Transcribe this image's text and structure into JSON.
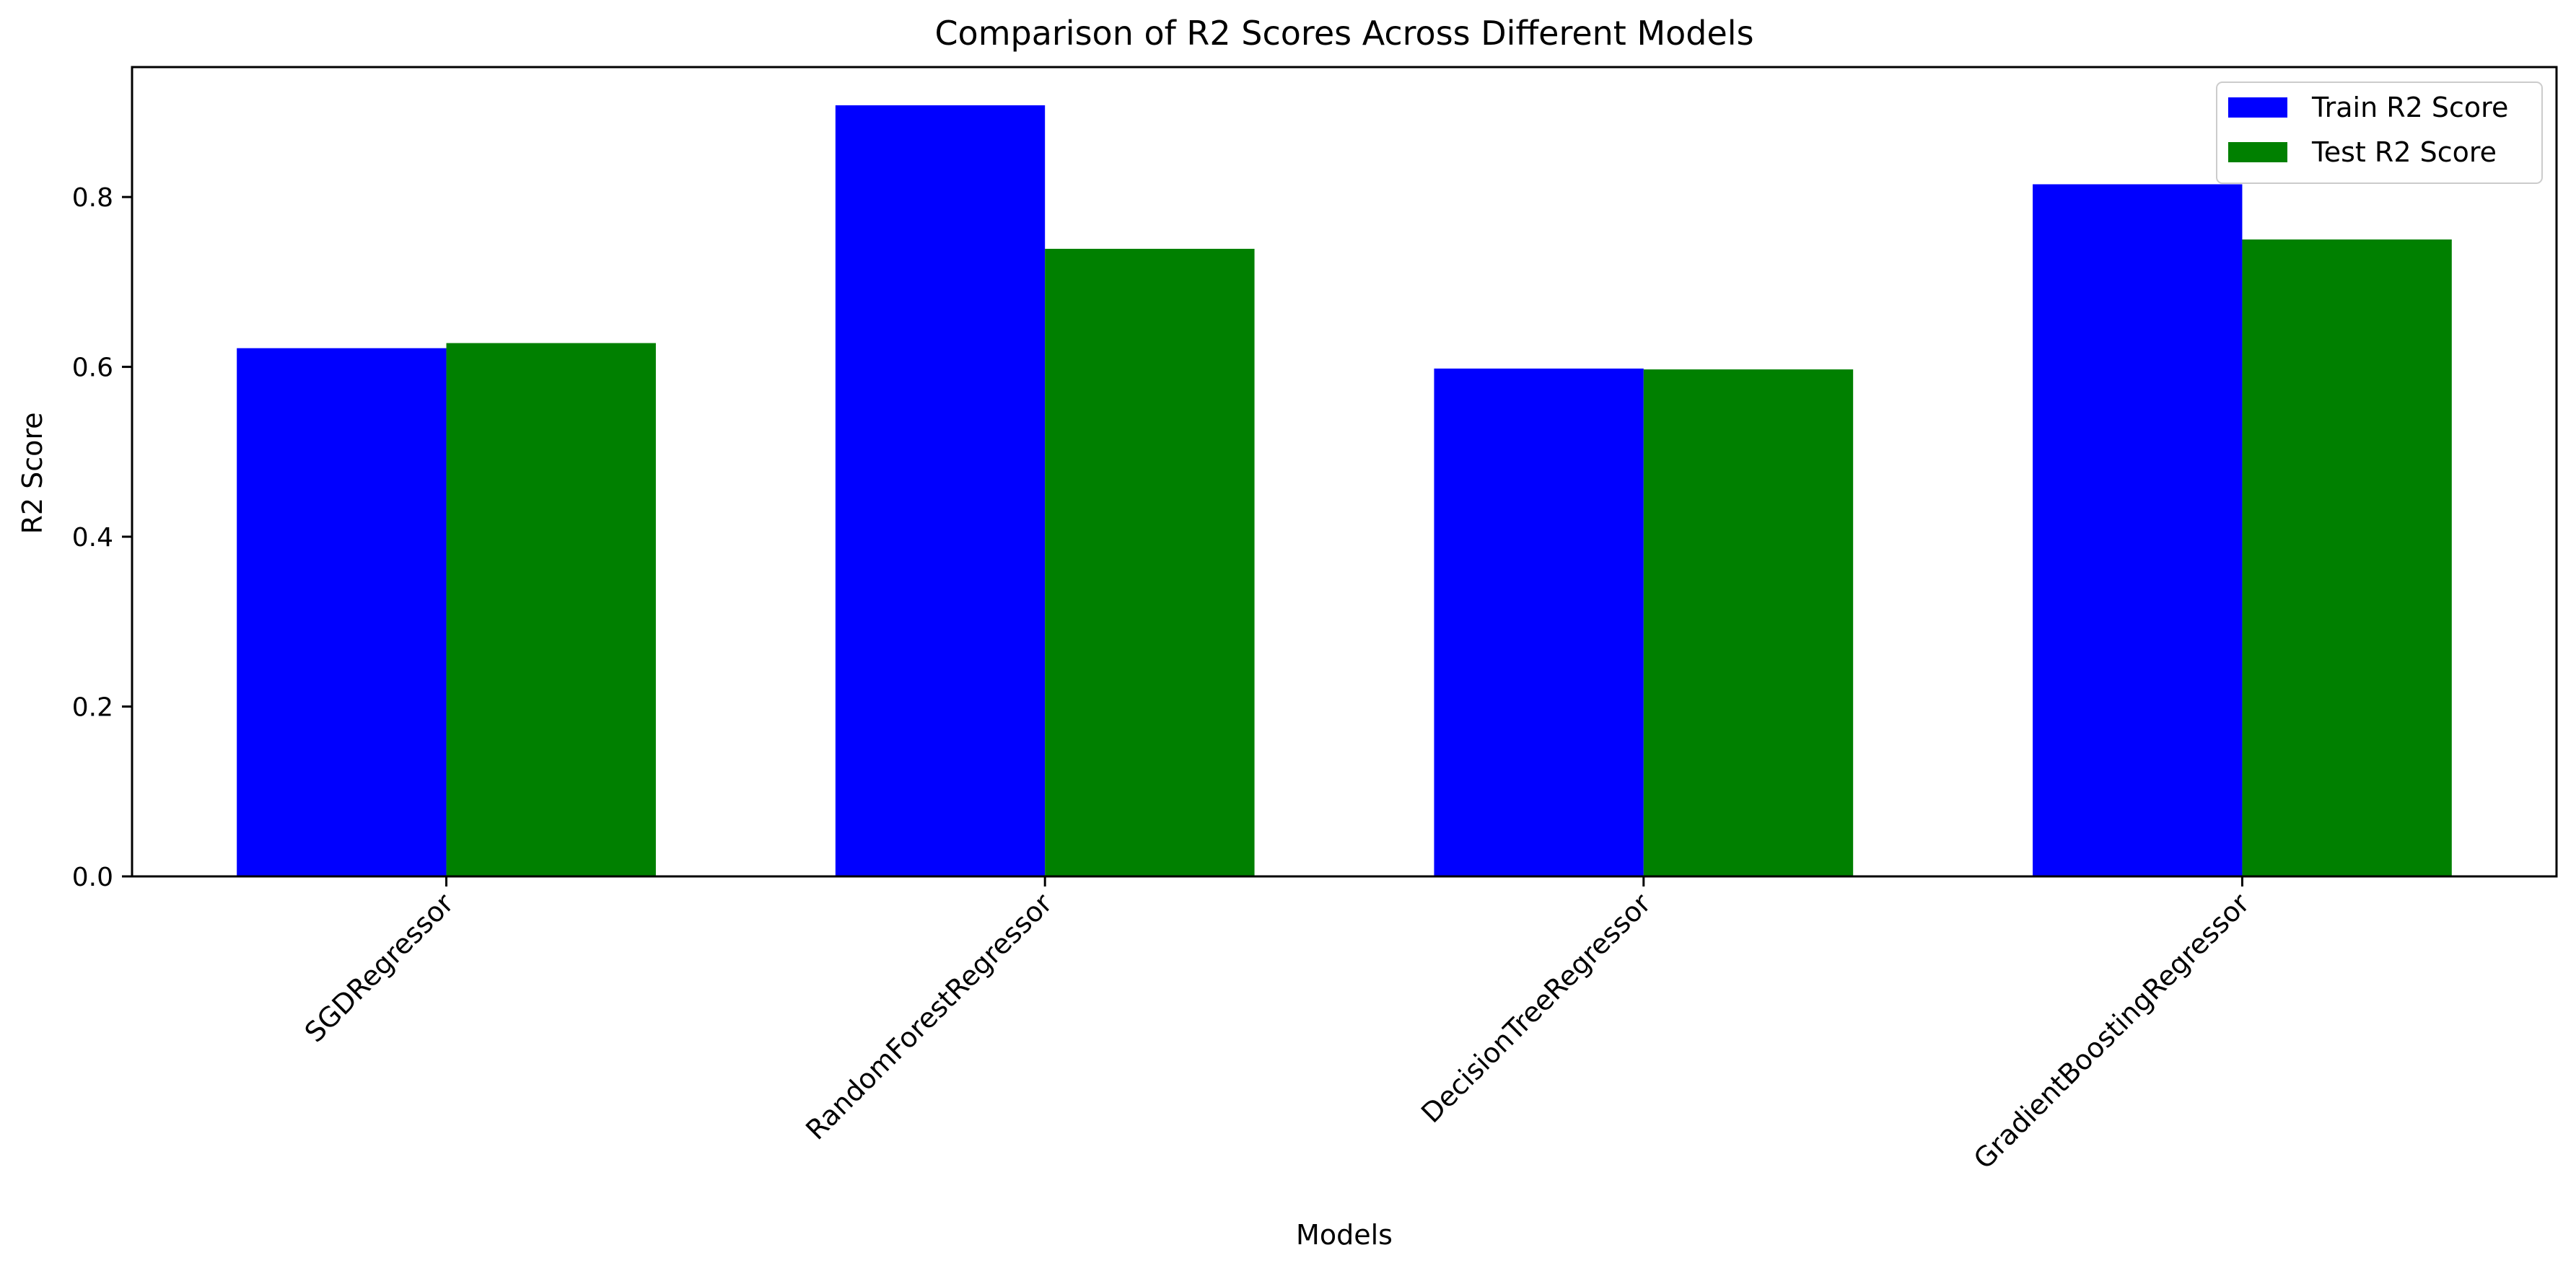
{
  "chart_data": {
    "type": "bar",
    "title": "Comparison of R2 Scores Across Different Models",
    "xlabel": "Models",
    "ylabel": "R2 Score",
    "categories": [
      "SGDRegressor",
      "RandomForestRegressor",
      "DecisionTreeRegressor",
      "GradientBoostingRegressor"
    ],
    "series": [
      {
        "name": "Train R2 Score",
        "color": "#0000ff",
        "values": [
          0.622,
          0.908,
          0.598,
          0.815
        ]
      },
      {
        "name": "Test R2 Score",
        "color": "#008000",
        "values": [
          0.628,
          0.739,
          0.597,
          0.75
        ]
      }
    ],
    "yticks": [
      0.0,
      0.2,
      0.4,
      0.6,
      0.8
    ],
    "ytick_labels": [
      "0.0",
      "0.2",
      "0.4",
      "0.6",
      "0.8"
    ],
    "ylim": [
      0,
      0.953
    ],
    "grid": false,
    "legend_position": "top-right"
  }
}
